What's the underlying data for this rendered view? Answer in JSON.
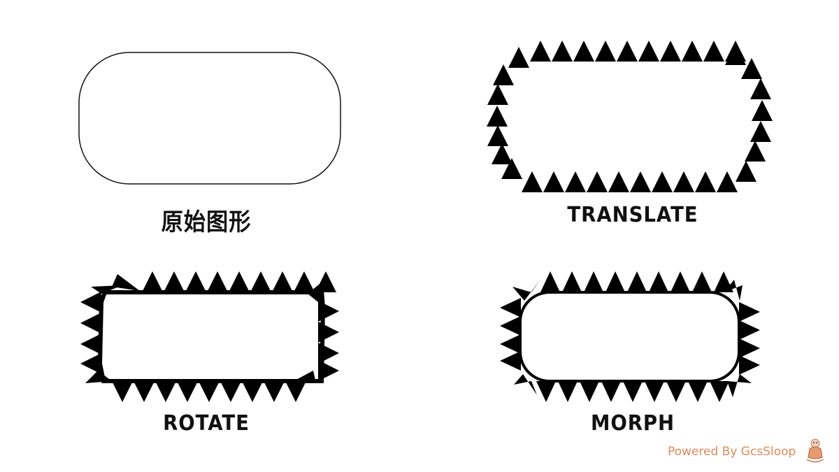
{
  "captions": {
    "original": "原始图形",
    "translate": "TRANSLATE",
    "rotate": "ROTATE",
    "morph": "MORPH"
  },
  "footer": {
    "powered_by": "Powered By GcsSloop"
  },
  "colors": {
    "stroke": "#111111",
    "fill": "#000000",
    "footer": "#e08a5c"
  },
  "icons": {
    "mascot": "mascot-logo-icon"
  }
}
